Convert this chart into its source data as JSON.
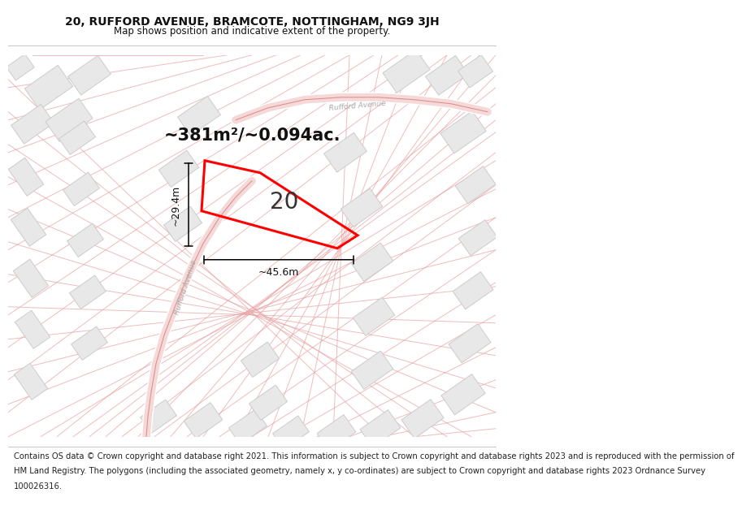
{
  "title_line1": "20, RUFFORD AVENUE, BRAMCOTE, NOTTINGHAM, NG9 3JH",
  "title_line2": "Map shows position and indicative extent of the property.",
  "footer_lines": [
    "Contains OS data © Crown copyright and database right 2021. This information is subject to Crown copyright and database rights 2023 and is reproduced with the permission of",
    "HM Land Registry. The polygons (including the associated geometry, namely x, y co-ordinates) are subject to Crown copyright and database rights 2023 Ordnance Survey",
    "100026316."
  ],
  "area_text": "~381m²/~0.094ac.",
  "property_number": "20",
  "dim_width": "~45.6m",
  "dim_height": "~29.4m",
  "map_bg": "#f7f7f7",
  "road_line_color": "#e8a0a0",
  "road_line_color2": "#d06060",
  "building_fill": "#e8e8e8",
  "building_edge": "#cccccc",
  "property_color": "#ff0000",
  "dim_color": "#000000",
  "road_label_color": "#aaaaaa",
  "title_fontsize": 10,
  "subtitle_fontsize": 8.5,
  "footer_fontsize": 7.2,
  "area_fontsize": 15,
  "number_fontsize": 20,
  "dim_fontsize": 9
}
